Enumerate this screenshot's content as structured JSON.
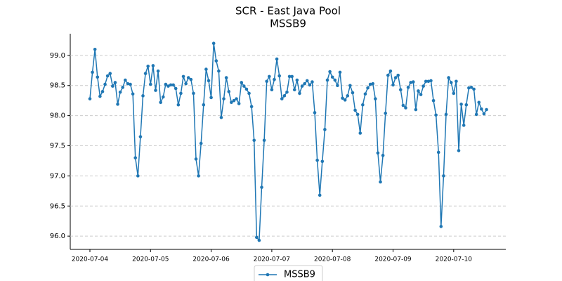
{
  "chart_data": {
    "type": "line",
    "title": "SCR - East Java Pool",
    "subtitle": "MSSB9",
    "x": [
      "2020-07-04 00:00",
      "2020-07-04 01:00",
      "2020-07-04 02:00",
      "2020-07-04 03:00",
      "2020-07-04 04:00",
      "2020-07-04 05:00",
      "2020-07-04 06:00",
      "2020-07-04 07:00",
      "2020-07-04 08:00",
      "2020-07-04 09:00",
      "2020-07-04 10:00",
      "2020-07-04 11:00",
      "2020-07-04 12:00",
      "2020-07-04 13:00",
      "2020-07-04 14:00",
      "2020-07-04 15:00",
      "2020-07-04 16:00",
      "2020-07-04 17:00",
      "2020-07-04 18:00",
      "2020-07-04 19:00",
      "2020-07-04 20:00",
      "2020-07-04 21:00",
      "2020-07-04 22:00",
      "2020-07-04 23:00",
      "2020-07-05 00:00",
      "2020-07-05 01:00",
      "2020-07-05 02:00",
      "2020-07-05 03:00",
      "2020-07-05 04:00",
      "2020-07-05 05:00",
      "2020-07-05 06:00",
      "2020-07-05 07:00",
      "2020-07-05 08:00",
      "2020-07-05 09:00",
      "2020-07-05 10:00",
      "2020-07-05 11:00",
      "2020-07-05 12:00",
      "2020-07-05 13:00",
      "2020-07-05 14:00",
      "2020-07-05 15:00",
      "2020-07-05 16:00",
      "2020-07-05 17:00",
      "2020-07-05 18:00",
      "2020-07-05 19:00",
      "2020-07-05 20:00",
      "2020-07-05 21:00",
      "2020-07-05 22:00",
      "2020-07-05 23:00",
      "2020-07-06 00:00",
      "2020-07-06 01:00",
      "2020-07-06 02:00",
      "2020-07-06 03:00",
      "2020-07-06 04:00",
      "2020-07-06 05:00",
      "2020-07-06 06:00",
      "2020-07-06 07:00",
      "2020-07-06 08:00",
      "2020-07-06 09:00",
      "2020-07-06 10:00",
      "2020-07-06 11:00",
      "2020-07-06 12:00",
      "2020-07-06 13:00",
      "2020-07-06 14:00",
      "2020-07-06 15:00",
      "2020-07-06 16:00",
      "2020-07-06 17:00",
      "2020-07-06 18:00",
      "2020-07-06 19:00",
      "2020-07-06 20:00",
      "2020-07-06 21:00",
      "2020-07-06 22:00",
      "2020-07-06 23:00",
      "2020-07-07 00:00",
      "2020-07-07 01:00",
      "2020-07-07 02:00",
      "2020-07-07 03:00",
      "2020-07-07 04:00",
      "2020-07-07 05:00",
      "2020-07-07 06:00",
      "2020-07-07 07:00",
      "2020-07-07 08:00",
      "2020-07-07 09:00",
      "2020-07-07 10:00",
      "2020-07-07 11:00",
      "2020-07-07 12:00",
      "2020-07-07 13:00",
      "2020-07-07 14:00",
      "2020-07-07 15:00",
      "2020-07-07 16:00",
      "2020-07-07 17:00",
      "2020-07-07 18:00",
      "2020-07-07 19:00",
      "2020-07-07 20:00",
      "2020-07-07 21:00",
      "2020-07-07 22:00",
      "2020-07-07 23:00",
      "2020-07-08 00:00",
      "2020-07-08 01:00",
      "2020-07-08 02:00",
      "2020-07-08 03:00",
      "2020-07-08 04:00",
      "2020-07-08 05:00",
      "2020-07-08 06:00",
      "2020-07-08 07:00",
      "2020-07-08 08:00",
      "2020-07-08 09:00",
      "2020-07-08 10:00",
      "2020-07-08 11:00",
      "2020-07-08 12:00",
      "2020-07-08 13:00",
      "2020-07-08 14:00",
      "2020-07-08 15:00",
      "2020-07-08 16:00",
      "2020-07-08 17:00",
      "2020-07-08 18:00",
      "2020-07-08 19:00",
      "2020-07-08 20:00",
      "2020-07-08 21:00",
      "2020-07-08 22:00",
      "2020-07-08 23:00",
      "2020-07-09 00:00",
      "2020-07-09 01:00",
      "2020-07-09 02:00",
      "2020-07-09 03:00",
      "2020-07-09 04:00",
      "2020-07-09 05:00",
      "2020-07-09 06:00",
      "2020-07-09 07:00",
      "2020-07-09 08:00",
      "2020-07-09 09:00",
      "2020-07-09 10:00",
      "2020-07-09 11:00",
      "2020-07-09 12:00",
      "2020-07-09 13:00",
      "2020-07-09 14:00",
      "2020-07-09 15:00",
      "2020-07-09 16:00",
      "2020-07-09 17:00",
      "2020-07-09 18:00",
      "2020-07-09 19:00",
      "2020-07-09 20:00",
      "2020-07-09 21:00",
      "2020-07-09 22:00",
      "2020-07-09 23:00",
      "2020-07-10 00:00",
      "2020-07-10 01:00",
      "2020-07-10 02:00",
      "2020-07-10 03:00",
      "2020-07-10 04:00",
      "2020-07-10 05:00",
      "2020-07-10 06:00",
      "2020-07-10 07:00",
      "2020-07-10 08:00",
      "2020-07-10 09:00",
      "2020-07-10 10:00",
      "2020-07-10 11:00",
      "2020-07-10 12:00",
      "2020-07-10 13:00"
    ],
    "series": [
      {
        "name": "MSSB9",
        "color": "#1f77b4",
        "values": [
          98.28,
          98.72,
          99.1,
          98.64,
          98.32,
          98.4,
          98.52,
          98.66,
          98.7,
          98.49,
          98.55,
          98.19,
          98.39,
          98.47,
          98.59,
          98.53,
          98.52,
          98.36,
          97.3,
          97.0,
          97.65,
          98.33,
          98.7,
          98.82,
          98.52,
          98.83,
          98.42,
          98.74,
          98.22,
          98.31,
          98.52,
          98.49,
          98.51,
          98.51,
          98.45,
          98.18,
          98.37,
          98.65,
          98.53,
          98.63,
          98.6,
          98.37,
          97.28,
          97.0,
          97.54,
          98.18,
          98.77,
          98.58,
          98.3,
          99.2,
          98.91,
          98.74,
          97.97,
          98.28,
          98.63,
          98.4,
          98.22,
          98.25,
          98.28,
          98.2,
          98.55,
          98.49,
          98.44,
          98.37,
          98.15,
          97.59,
          95.98,
          95.93,
          96.81,
          97.59,
          98.57,
          98.65,
          98.43,
          98.6,
          98.94,
          98.66,
          98.28,
          98.33,
          98.39,
          98.65,
          98.65,
          98.43,
          98.59,
          98.37,
          98.49,
          98.53,
          98.58,
          98.51,
          98.56,
          98.05,
          97.26,
          96.68,
          97.24,
          97.77,
          98.59,
          98.73,
          98.64,
          98.59,
          98.5,
          98.72,
          98.29,
          98.26,
          98.33,
          98.5,
          98.38,
          98.09,
          98.02,
          97.71,
          98.18,
          98.36,
          98.46,
          98.52,
          98.53,
          98.28,
          97.38,
          96.9,
          97.34,
          98.04,
          98.67,
          98.74,
          98.51,
          98.63,
          98.67,
          98.43,
          98.17,
          98.13,
          98.47,
          98.55,
          98.56,
          98.1,
          98.41,
          98.35,
          98.49,
          98.57,
          98.57,
          98.58,
          98.25,
          98.01,
          97.39,
          96.16,
          97.0,
          98.02,
          98.63,
          98.55,
          98.37,
          98.57,
          97.42,
          98.19,
          97.84,
          98.18,
          98.46,
          98.47,
          98.44,
          98.02,
          98.22,
          98.11,
          98.03,
          98.1
        ]
      }
    ],
    "xlim": [
      "2020-07-03 16:13",
      "2020-07-10 20:38"
    ],
    "xticks": [
      "2020-07-04",
      "2020-07-05",
      "2020-07-06",
      "2020-07-07",
      "2020-07-08",
      "2020-07-09",
      "2020-07-10"
    ],
    "ylim": [
      95.78,
      99.36
    ],
    "yticks": [
      {
        "value": 96,
        "label": "96.0"
      },
      {
        "value": 96.5,
        "label": "96.5"
      },
      {
        "value": 97,
        "label": "97.0"
      },
      {
        "value": 97.5,
        "label": "97.5"
      },
      {
        "value": 98,
        "label": "98.0"
      },
      {
        "value": 98.5,
        "label": "98.5"
      },
      {
        "value": 99,
        "label": "99.0"
      }
    ],
    "grid": true,
    "legend": "bottom"
  }
}
